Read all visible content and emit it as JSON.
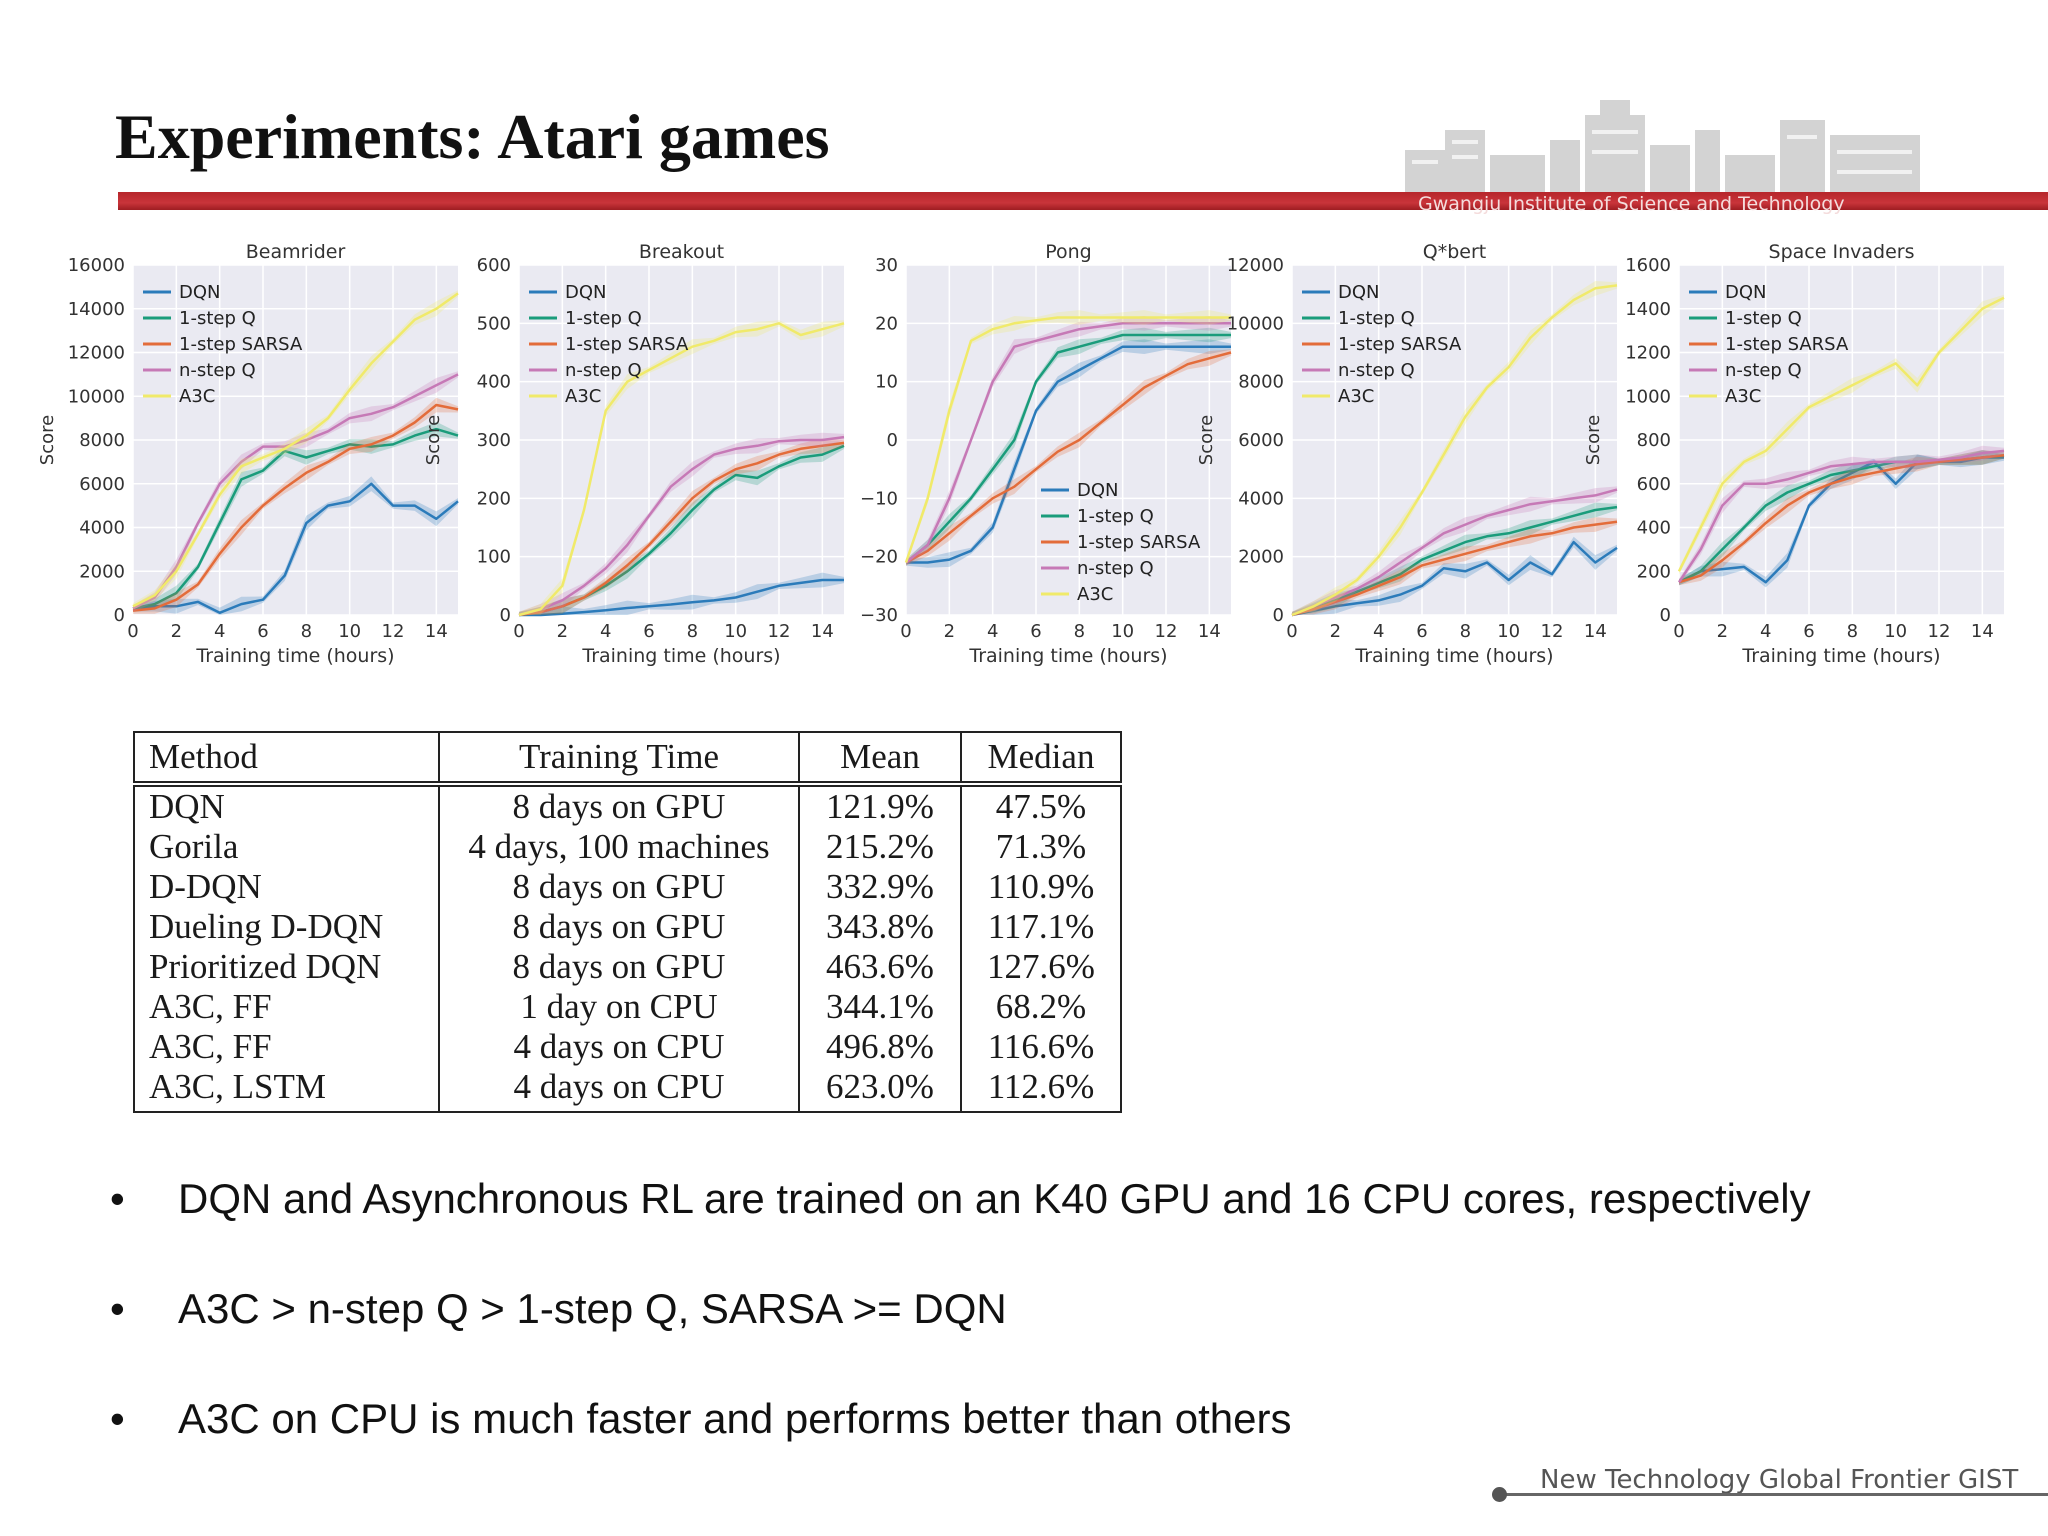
{
  "slide": {
    "title": "Experiments: Atari games",
    "institution": "Gwangju Institute of Science and Technology",
    "footer": "New Technology Global Frontier GIST",
    "bullets": [
      "DQN and Asynchronous RL are trained on an K40 GPU and 16 CPU cores, respectively",
      "A3C > n-step Q > 1-step Q, SARSA >= DQN",
      "A3C on CPU is much faster and performs better than others"
    ]
  },
  "table": {
    "headers": [
      "Method",
      "Training Time",
      "Mean",
      "Median"
    ],
    "rows": [
      [
        "DQN",
        "8 days on GPU",
        "121.9%",
        "47.5%"
      ],
      [
        "Gorila",
        "4 days, 100 machines",
        "215.2%",
        "71.3%"
      ],
      [
        "D-DQN",
        "8 days on GPU",
        "332.9%",
        "110.9%"
      ],
      [
        "Dueling D-DQN",
        "8 days on GPU",
        "343.8%",
        "117.1%"
      ],
      [
        "Prioritized DQN",
        "8 days on GPU",
        "463.6%",
        "127.6%"
      ],
      [
        "A3C, FF",
        "1 day on CPU",
        "344.1%",
        "68.2%"
      ],
      [
        "A3C, FF",
        "4 days on CPU",
        "496.8%",
        "116.6%"
      ],
      [
        "A3C, LSTM",
        "4 days on CPU",
        "623.0%",
        "112.6%"
      ]
    ]
  },
  "series_colors": {
    "DQN": "#2b7bba",
    "1-step Q": "#1a9c7b",
    "1-step SARSA": "#e36c3a",
    "n-step Q": "#c679b6",
    "A3C": "#f0ea6a"
  },
  "chart_data": [
    {
      "type": "line",
      "title": "Beamrider",
      "xlabel": "Training time (hours)",
      "ylabel": "Score",
      "xlim": [
        0,
        15
      ],
      "ylim": [
        0,
        16000
      ],
      "xticks": [
        0,
        2,
        4,
        6,
        8,
        10,
        12,
        14
      ],
      "yticks": [
        0,
        2000,
        4000,
        6000,
        8000,
        10000,
        12000,
        14000,
        16000
      ],
      "grid": true,
      "legend": "top-left",
      "x": [
        0,
        1,
        2,
        3,
        4,
        5,
        6,
        7,
        8,
        9,
        10,
        11,
        12,
        13,
        14,
        15
      ],
      "series": [
        {
          "name": "DQN",
          "values": [
            300,
            400,
            400,
            600,
            100,
            500,
            700,
            1800,
            4200,
            5000,
            5200,
            6000,
            5000,
            5000,
            4400,
            5200
          ]
        },
        {
          "name": "1-step Q",
          "values": [
            300,
            500,
            1000,
            2200,
            4200,
            6200,
            6600,
            7500,
            7200,
            7500,
            7800,
            7700,
            7800,
            8200,
            8500,
            8200
          ]
        },
        {
          "name": "1-step SARSA",
          "values": [
            200,
            300,
            700,
            1400,
            2800,
            4000,
            5000,
            5800,
            6500,
            7000,
            7600,
            7800,
            8200,
            8800,
            9600,
            9400
          ]
        },
        {
          "name": "n-step Q",
          "values": [
            300,
            800,
            2200,
            4200,
            6000,
            7000,
            7700,
            7700,
            8000,
            8400,
            9000,
            9200,
            9500,
            10000,
            10500,
            11000
          ]
        },
        {
          "name": "A3C",
          "values": [
            400,
            900,
            2000,
            3700,
            5500,
            6800,
            7200,
            7600,
            8200,
            9000,
            10300,
            11500,
            12500,
            13500,
            14000,
            14700
          ]
        }
      ]
    },
    {
      "type": "line",
      "title": "Breakout",
      "xlabel": "Training time (hours)",
      "ylabel": "Score",
      "xlim": [
        0,
        15
      ],
      "ylim": [
        0,
        600
      ],
      "xticks": [
        0,
        2,
        4,
        6,
        8,
        10,
        12,
        14
      ],
      "yticks": [
        0,
        100,
        200,
        300,
        400,
        500,
        600
      ],
      "grid": true,
      "legend": "top-left",
      "x": [
        0,
        1,
        2,
        3,
        4,
        5,
        6,
        7,
        8,
        9,
        10,
        11,
        12,
        13,
        14,
        15
      ],
      "series": [
        {
          "name": "DQN",
          "values": [
            0,
            0,
            2,
            5,
            8,
            12,
            15,
            18,
            22,
            25,
            30,
            40,
            50,
            55,
            60,
            60
          ]
        },
        {
          "name": "1-step Q",
          "values": [
            0,
            5,
            15,
            30,
            50,
            75,
            105,
            140,
            180,
            215,
            240,
            235,
            255,
            270,
            275,
            290
          ]
        },
        {
          "name": "1-step SARSA",
          "values": [
            0,
            5,
            15,
            30,
            55,
            85,
            120,
            160,
            200,
            230,
            250,
            260,
            275,
            285,
            290,
            295
          ]
        },
        {
          "name": "n-step Q",
          "values": [
            0,
            10,
            25,
            50,
            80,
            120,
            170,
            220,
            250,
            275,
            285,
            290,
            298,
            300,
            300,
            305
          ]
        },
        {
          "name": "A3C",
          "values": [
            0,
            10,
            50,
            180,
            350,
            400,
            420,
            440,
            460,
            470,
            485,
            490,
            500,
            480,
            490,
            500
          ]
        }
      ]
    },
    {
      "type": "line",
      "title": "Pong",
      "xlabel": "Training time (hours)",
      "ylabel": "",
      "xlim": [
        0,
        15
      ],
      "ylim": [
        -30,
        30
      ],
      "xticks": [
        0,
        2,
        4,
        6,
        8,
        10,
        12,
        14
      ],
      "yticks": [
        -30,
        -20,
        -10,
        0,
        10,
        20,
        30
      ],
      "grid": true,
      "legend": "lower-right",
      "x": [
        0,
        1,
        2,
        3,
        4,
        5,
        6,
        7,
        8,
        9,
        10,
        11,
        12,
        13,
        14,
        15
      ],
      "series": [
        {
          "name": "DQN",
          "values": [
            -21,
            -21,
            -20.5,
            -19,
            -15,
            -5,
            5,
            10,
            12,
            14,
            16,
            16,
            16,
            16,
            16,
            16
          ]
        },
        {
          "name": "1-step Q",
          "values": [
            -21,
            -18,
            -14,
            -10,
            -5,
            0,
            10,
            15,
            16,
            17,
            18,
            18,
            18,
            18,
            18,
            18
          ]
        },
        {
          "name": "1-step SARSA",
          "values": [
            -21,
            -19,
            -16,
            -13,
            -10,
            -8,
            -5,
            -2,
            0,
            3,
            6,
            9,
            11,
            13,
            14,
            15
          ]
        },
        {
          "name": "n-step Q",
          "values": [
            -21,
            -18,
            -10,
            0,
            10,
            16,
            17,
            18,
            19,
            19.5,
            20,
            20,
            20,
            20,
            20,
            20
          ]
        },
        {
          "name": "A3C",
          "values": [
            -21,
            -10,
            5,
            17,
            19,
            20,
            20.5,
            21,
            21,
            21,
            21,
            21,
            21,
            21,
            21,
            21
          ]
        }
      ]
    },
    {
      "type": "line",
      "title": "Q*bert",
      "xlabel": "Training time (hours)",
      "ylabel": "Score",
      "xlim": [
        0,
        15
      ],
      "ylim": [
        0,
        12000
      ],
      "xticks": [
        0,
        2,
        4,
        6,
        8,
        10,
        12,
        14
      ],
      "yticks": [
        0,
        2000,
        4000,
        6000,
        8000,
        10000,
        12000
      ],
      "grid": true,
      "legend": "top-left",
      "x": [
        0,
        1,
        2,
        3,
        4,
        5,
        6,
        7,
        8,
        9,
        10,
        11,
        12,
        13,
        14,
        15
      ],
      "series": [
        {
          "name": "DQN",
          "values": [
            0,
            150,
            300,
            400,
            500,
            700,
            1000,
            1600,
            1500,
            1800,
            1200,
            1800,
            1400,
            2500,
            1800,
            2300
          ]
        },
        {
          "name": "1-step Q",
          "values": [
            0,
            250,
            500,
            800,
            1100,
            1400,
            1900,
            2200,
            2500,
            2700,
            2800,
            3000,
            3200,
            3400,
            3600,
            3700
          ]
        },
        {
          "name": "1-step SARSA",
          "values": [
            0,
            200,
            450,
            700,
            1000,
            1300,
            1700,
            1900,
            2100,
            2300,
            2500,
            2700,
            2800,
            3000,
            3100,
            3200
          ]
        },
        {
          "name": "n-step Q",
          "values": [
            0,
            300,
            600,
            900,
            1300,
            1800,
            2300,
            2800,
            3100,
            3400,
            3600,
            3800,
            3900,
            4000,
            4100,
            4300
          ]
        },
        {
          "name": "A3C",
          "values": [
            0,
            300,
            700,
            1200,
            2000,
            3000,
            4200,
            5500,
            6800,
            7800,
            8500,
            9500,
            10200,
            10800,
            11200,
            11300
          ]
        }
      ]
    },
    {
      "type": "line",
      "title": "Space Invaders",
      "xlabel": "Training time (hours)",
      "ylabel": "Score",
      "xlim": [
        0,
        15
      ],
      "ylim": [
        0,
        1600
      ],
      "xticks": [
        0,
        2,
        4,
        6,
        8,
        10,
        12,
        14
      ],
      "yticks": [
        0,
        200,
        400,
        600,
        800,
        1000,
        1200,
        1400,
        1600
      ],
      "grid": true,
      "legend": "top-left",
      "x": [
        0,
        1,
        2,
        3,
        4,
        5,
        6,
        7,
        8,
        9,
        10,
        11,
        12,
        13,
        14,
        15
      ],
      "series": [
        {
          "name": "DQN",
          "values": [
            150,
            200,
            210,
            220,
            150,
            250,
            500,
            600,
            650,
            700,
            600,
            700,
            700,
            700,
            720,
            720
          ]
        },
        {
          "name": "1-step Q",
          "values": [
            150,
            200,
            300,
            400,
            500,
            560,
            600,
            640,
            660,
            680,
            700,
            700,
            700,
            710,
            720,
            730
          ]
        },
        {
          "name": "1-step SARSA",
          "values": [
            150,
            180,
            250,
            330,
            420,
            500,
            560,
            600,
            630,
            650,
            670,
            690,
            700,
            710,
            720,
            730
          ]
        },
        {
          "name": "n-step Q",
          "values": [
            150,
            300,
            500,
            600,
            600,
            620,
            650,
            680,
            690,
            700,
            700,
            700,
            710,
            720,
            740,
            750
          ]
        },
        {
          "name": "A3C",
          "values": [
            200,
            400,
            600,
            700,
            750,
            850,
            950,
            1000,
            1050,
            1100,
            1150,
            1050,
            1200,
            1300,
            1400,
            1450
          ]
        }
      ]
    }
  ]
}
